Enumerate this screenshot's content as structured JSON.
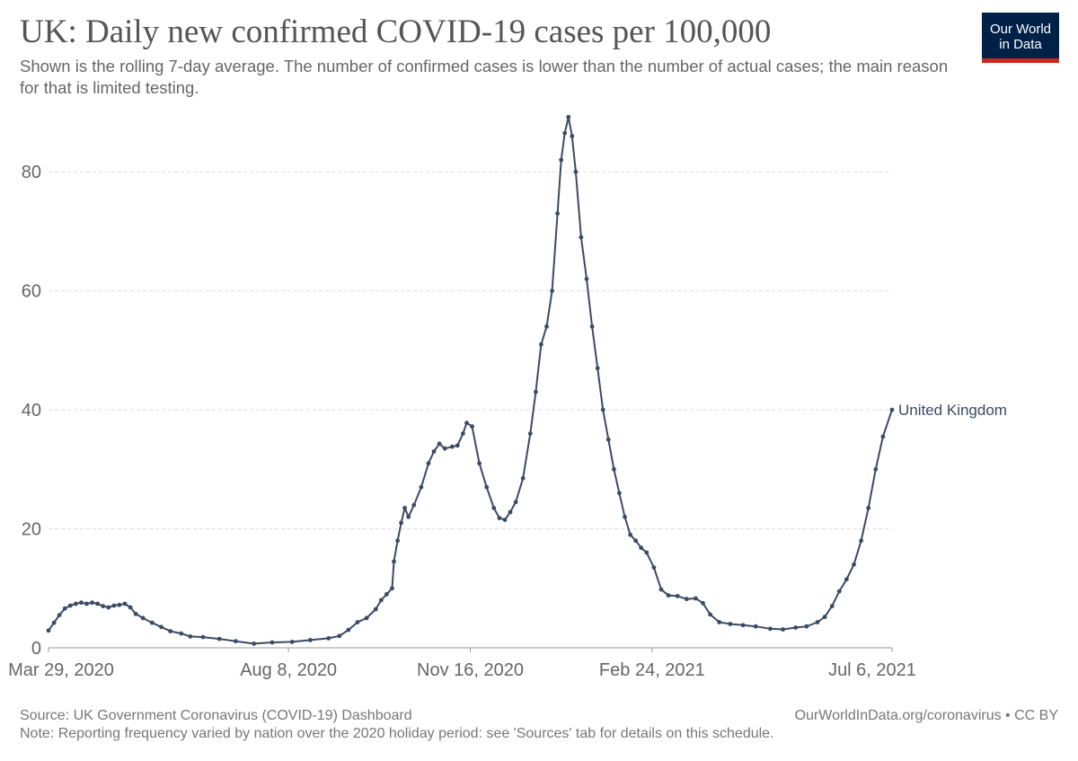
{
  "header": {
    "title": "UK: Daily new confirmed COVID-19 cases per 100,000",
    "subtitle": "Shown is the rolling 7-day average. The number of confirmed cases is lower than the number of actual cases; the main reason for that is limited testing.",
    "logo_line1": "Our World",
    "logo_line2": "in Data"
  },
  "footer": {
    "source": "Source: UK Government Coronavirus (COVID-19) Dashboard",
    "note": "Note: Reporting frequency varied by nation over the 2020 holiday period: see 'Sources' tab for details on this schedule.",
    "credit": "OurWorldInData.org/coronavirus • CC BY"
  },
  "colors": {
    "line": "#3b4b63",
    "grid": "#dddddd",
    "axis_text": "#666666",
    "logo_bg": "#002147",
    "logo_accent": "#ce261e"
  },
  "chart_data": {
    "type": "line",
    "title": "UK: Daily new confirmed COVID-19 cases per 100,000",
    "xlabel": "",
    "ylabel": "",
    "x_ticks": [
      "Mar 29, 2020",
      "Aug 8, 2020",
      "Nov 16, 2020",
      "Feb 24, 2021",
      "Jul 6, 2021"
    ],
    "y_ticks": [
      0,
      20,
      40,
      60,
      80
    ],
    "ylim": [
      0,
      90
    ],
    "xlim": [
      "2020-03-29",
      "2021-07-06"
    ],
    "grid": "horizontal dashed",
    "series": [
      {
        "name": "United Kingdom",
        "points": [
          [
            "2020-03-29",
            2.9
          ],
          [
            "2020-04-01",
            4.2
          ],
          [
            "2020-04-04",
            5.5
          ],
          [
            "2020-04-07",
            6.6
          ],
          [
            "2020-04-10",
            7.1
          ],
          [
            "2020-04-13",
            7.4
          ],
          [
            "2020-04-16",
            7.6
          ],
          [
            "2020-04-19",
            7.4
          ],
          [
            "2020-04-22",
            7.6
          ],
          [
            "2020-04-25",
            7.4
          ],
          [
            "2020-04-28",
            7.0
          ],
          [
            "2020-05-01",
            6.8
          ],
          [
            "2020-05-04",
            7.1
          ],
          [
            "2020-05-07",
            7.2
          ],
          [
            "2020-05-10",
            7.4
          ],
          [
            "2020-05-13",
            6.8
          ],
          [
            "2020-05-16",
            5.7
          ],
          [
            "2020-05-20",
            5.0
          ],
          [
            "2020-05-25",
            4.2
          ],
          [
            "2020-05-30",
            3.5
          ],
          [
            "2020-06-04",
            2.8
          ],
          [
            "2020-06-10",
            2.4
          ],
          [
            "2020-06-15",
            1.9
          ],
          [
            "2020-06-22",
            1.8
          ],
          [
            "2020-07-01",
            1.5
          ],
          [
            "2020-07-10",
            1.1
          ],
          [
            "2020-07-20",
            0.7
          ],
          [
            "2020-07-30",
            0.9
          ],
          [
            "2020-08-10",
            1.0
          ],
          [
            "2020-08-20",
            1.3
          ],
          [
            "2020-08-30",
            1.6
          ],
          [
            "2020-09-05",
            2.0
          ],
          [
            "2020-09-10",
            3.0
          ],
          [
            "2020-09-15",
            4.3
          ],
          [
            "2020-09-20",
            5.0
          ],
          [
            "2020-09-25",
            6.5
          ],
          [
            "2020-09-28",
            8.0
          ],
          [
            "2020-10-01",
            9.0
          ],
          [
            "2020-10-04",
            10.0
          ],
          [
            "2020-10-05",
            14.5
          ],
          [
            "2020-10-07",
            18.0
          ],
          [
            "2020-10-09",
            21.0
          ],
          [
            "2020-10-11",
            23.5
          ],
          [
            "2020-10-13",
            22.0
          ],
          [
            "2020-10-16",
            24.0
          ],
          [
            "2020-10-20",
            27.0
          ],
          [
            "2020-10-24",
            31.0
          ],
          [
            "2020-10-27",
            33.0
          ],
          [
            "2020-10-30",
            34.3
          ],
          [
            "2020-11-02",
            33.5
          ],
          [
            "2020-11-06",
            33.8
          ],
          [
            "2020-11-09",
            34.0
          ],
          [
            "2020-11-12",
            36.0
          ],
          [
            "2020-11-14",
            37.8
          ],
          [
            "2020-11-17",
            37.2
          ],
          [
            "2020-11-21",
            31.0
          ],
          [
            "2020-11-25",
            27.0
          ],
          [
            "2020-11-29",
            23.5
          ],
          [
            "2020-12-02",
            21.8
          ],
          [
            "2020-12-05",
            21.5
          ],
          [
            "2020-12-08",
            22.8
          ],
          [
            "2020-12-11",
            24.5
          ],
          [
            "2020-12-15",
            28.5
          ],
          [
            "2020-12-19",
            36.0
          ],
          [
            "2020-12-22",
            43.0
          ],
          [
            "2020-12-25",
            51.0
          ],
          [
            "2020-12-28",
            54.0
          ],
          [
            "2020-12-31",
            60.0
          ],
          [
            "2021-01-03",
            73.0
          ],
          [
            "2021-01-05",
            82.0
          ],
          [
            "2021-01-07",
            86.5
          ],
          [
            "2021-01-09",
            89.2
          ],
          [
            "2021-01-11",
            86.0
          ],
          [
            "2021-01-13",
            80.0
          ],
          [
            "2021-01-16",
            69.0
          ],
          [
            "2021-01-19",
            62.0
          ],
          [
            "2021-01-22",
            54.0
          ],
          [
            "2021-01-25",
            47.0
          ],
          [
            "2021-01-28",
            40.0
          ],
          [
            "2021-01-31",
            35.0
          ],
          [
            "2021-02-03",
            30.0
          ],
          [
            "2021-02-06",
            26.0
          ],
          [
            "2021-02-09",
            22.0
          ],
          [
            "2021-02-12",
            19.0
          ],
          [
            "2021-02-15",
            18.0
          ],
          [
            "2021-02-18",
            16.8
          ],
          [
            "2021-02-21",
            16.0
          ],
          [
            "2021-02-25",
            13.5
          ],
          [
            "2021-03-01",
            9.8
          ],
          [
            "2021-03-05",
            8.8
          ],
          [
            "2021-03-10",
            8.7
          ],
          [
            "2021-03-15",
            8.2
          ],
          [
            "2021-03-20",
            8.3
          ],
          [
            "2021-03-24",
            7.5
          ],
          [
            "2021-03-28",
            5.6
          ],
          [
            "2021-04-02",
            4.3
          ],
          [
            "2021-04-08",
            4.0
          ],
          [
            "2021-04-15",
            3.8
          ],
          [
            "2021-04-22",
            3.6
          ],
          [
            "2021-04-30",
            3.2
          ],
          [
            "2021-05-07",
            3.1
          ],
          [
            "2021-05-14",
            3.4
          ],
          [
            "2021-05-20",
            3.6
          ],
          [
            "2021-05-26",
            4.3
          ],
          [
            "2021-05-30",
            5.2
          ],
          [
            "2021-06-03",
            7.0
          ],
          [
            "2021-06-07",
            9.5
          ],
          [
            "2021-06-11",
            11.5
          ],
          [
            "2021-06-15",
            14.0
          ],
          [
            "2021-06-19",
            18.0
          ],
          [
            "2021-06-23",
            23.5
          ],
          [
            "2021-06-27",
            30.0
          ],
          [
            "2021-07-01",
            35.5
          ],
          [
            "2021-07-06",
            40.0
          ]
        ]
      }
    ]
  }
}
